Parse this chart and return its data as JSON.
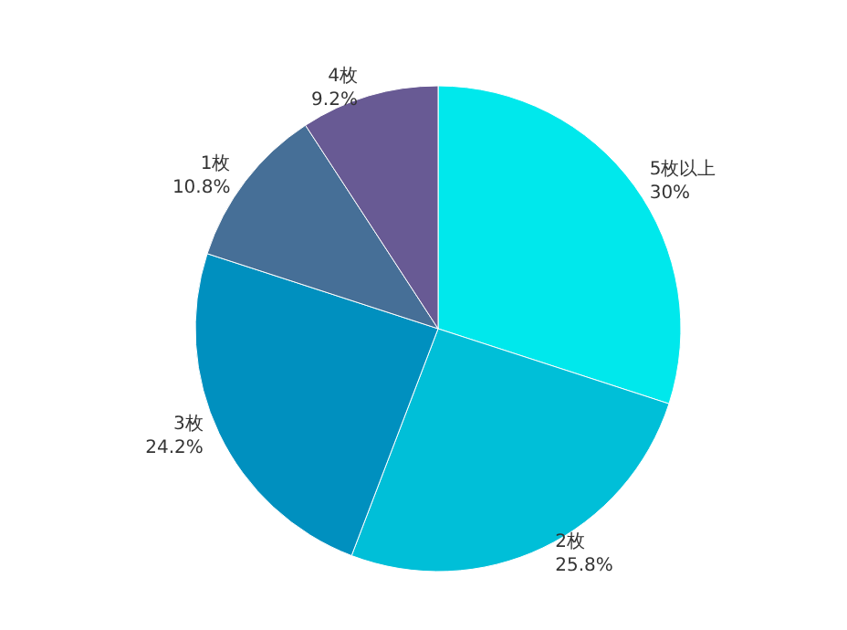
{
  "chart_data": {
    "type": "pie",
    "categories": [
      "5枚以上",
      "2枚",
      "3枚",
      "1枚",
      "4枚"
    ],
    "values": [
      30,
      25.8,
      24.2,
      10.8,
      9.2
    ],
    "value_labels": [
      "30%",
      "25.8%",
      "24.2%",
      "10.8%",
      "9.2%"
    ],
    "colors": [
      "#00e8ec",
      "#00bfd8",
      "#0090bf",
      "#466f97",
      "#685a94"
    ],
    "legend": false
  }
}
